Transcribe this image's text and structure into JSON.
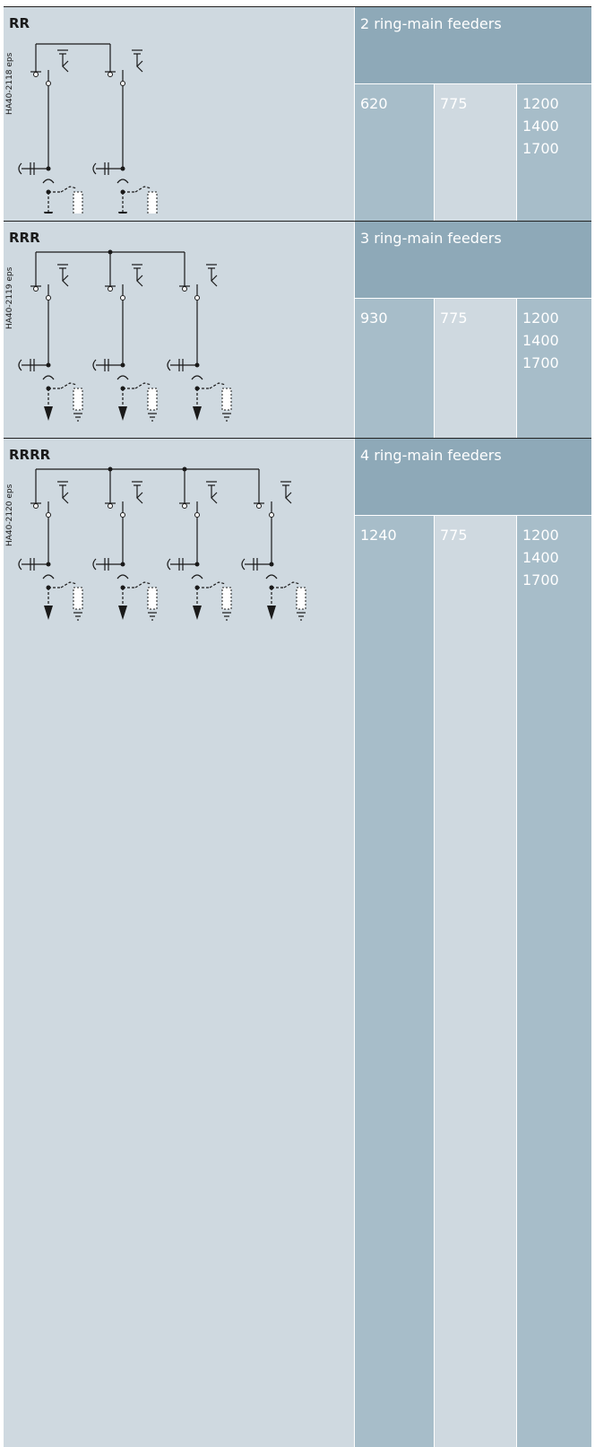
{
  "rows": [
    {
      "code": "RR",
      "ref": "HA40-2118 eps",
      "feeders_label": "2 ring-main feeders",
      "width": "620",
      "depth": "775",
      "heights": [
        "1200",
        "1400",
        "1700"
      ]
    },
    {
      "code": "RRR",
      "ref": "HA40-2119 eps",
      "feeders_label": "3 ring-main feeders",
      "width": "930",
      "depth": "775",
      "heights": [
        "1200",
        "1400",
        "1700"
      ]
    },
    {
      "code": "RRRR",
      "ref": "HA40-2120 eps",
      "feeders_label": "4 ring-main feeders",
      "width": "1240",
      "depth": "775",
      "heights": [
        "1200",
        "1400",
        "1700"
      ]
    }
  ]
}
